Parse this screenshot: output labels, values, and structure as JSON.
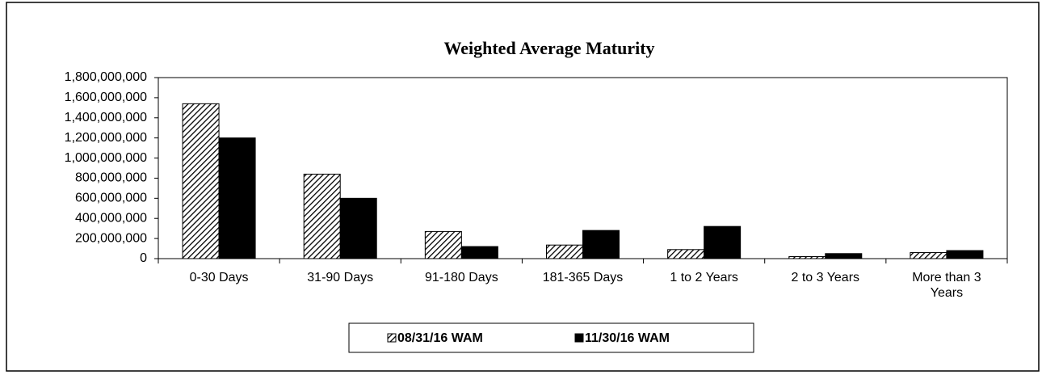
{
  "chart_data": {
    "type": "bar",
    "title": "Weighted Average Maturity",
    "categories": [
      "0-30 Days",
      "31-90 Days",
      "91-180 Days",
      "181-365 Days",
      "1 to 2 Years",
      "2 to 3 Years",
      "More than 3 Years"
    ],
    "series": [
      {
        "name": "08/31/16 WAM",
        "color": "#000000",
        "pattern": "hatch",
        "values": [
          1540000000,
          840000000,
          270000000,
          135000000,
          90000000,
          20000000,
          60000000
        ]
      },
      {
        "name": "11/30/16 WAM",
        "color": "#000000",
        "pattern": "solid",
        "values": [
          1200000000,
          600000000,
          120000000,
          280000000,
          320000000,
          50000000,
          80000000
        ]
      }
    ],
    "ylim": [
      0,
      1800000000
    ],
    "yticks": [
      0,
      {
        "value": 200000000,
        "label": "200,000,000"
      },
      {
        "value": 400000000,
        "label": "400,000,000"
      },
      {
        "value": 600000000,
        "label": "600,000,000"
      },
      {
        "value": 800000000,
        "label": "800,000,000"
      },
      {
        "value": 1000000000,
        "label": "1,000,000,000"
      },
      {
        "value": 1200000000,
        "label": "1,200,000,000"
      },
      {
        "value": 1400000000,
        "label": "1,400,000,000"
      },
      {
        "value": 1600000000,
        "label": "1,600,000,000"
      },
      {
        "value": 1800000000,
        "label": "1,800,000,000"
      }
    ],
    "grid": false,
    "legend": "bottom"
  }
}
